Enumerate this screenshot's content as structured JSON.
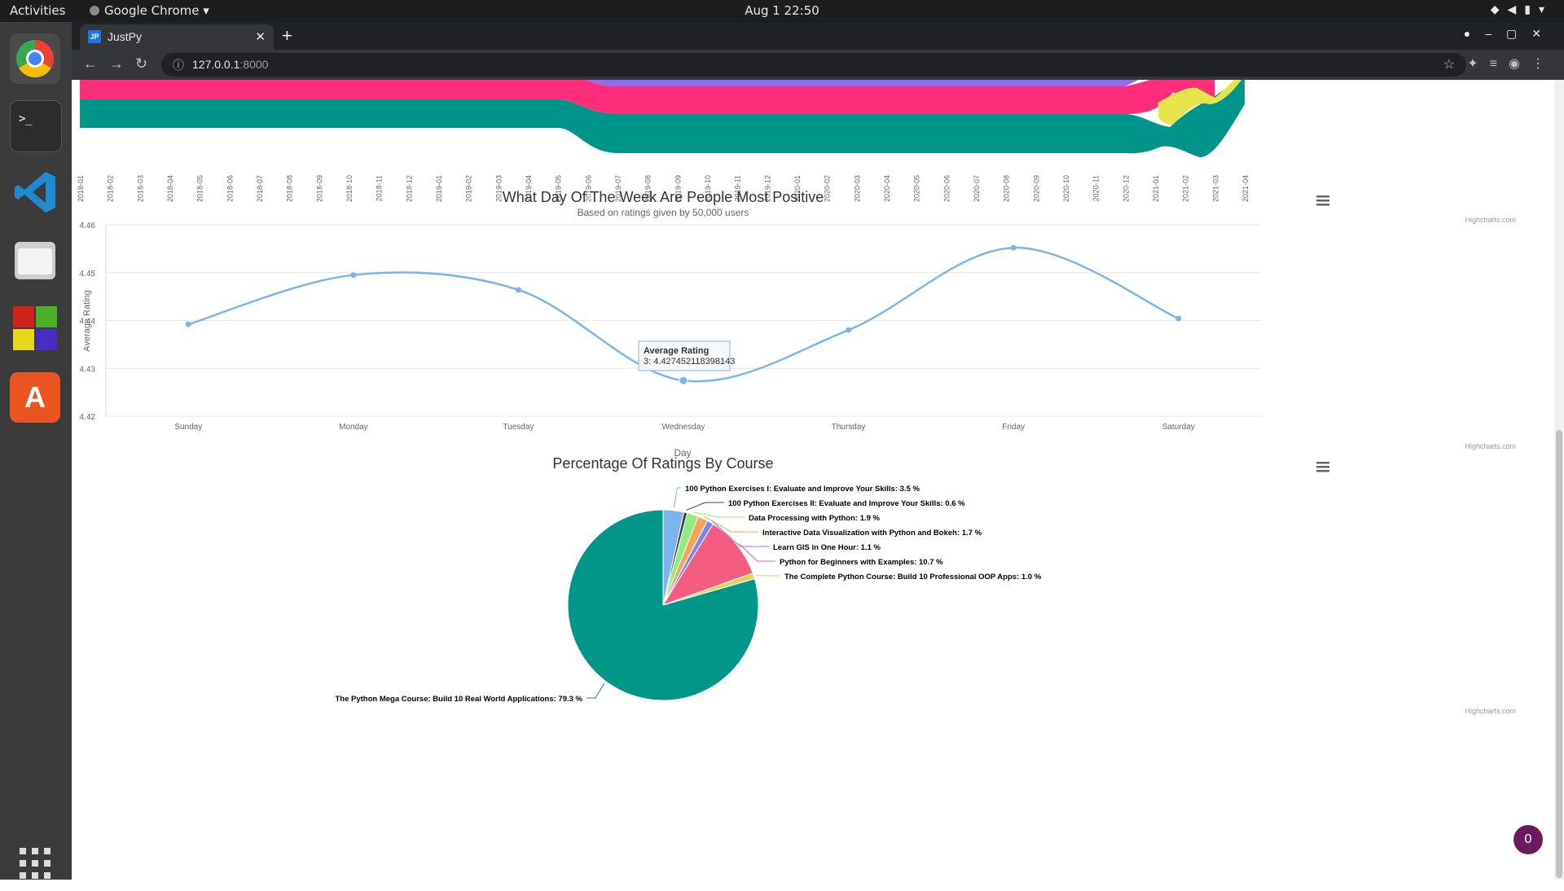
{
  "system_bar": {
    "activities": "Activities",
    "app_name": "Google Chrome",
    "clock": "Aug 1  22:50"
  },
  "browser": {
    "tab_title": "JustPy",
    "tab_favicon": "JP",
    "url_host": "127.0.0.1",
    "url_port": ":8000"
  },
  "top_chart": {
    "x_labels": [
      "2018-01",
      "2018-02",
      "2018-03",
      "2018-04",
      "2018-05",
      "2018-06",
      "2018-07",
      "2018-08",
      "2018-09",
      "2018-10",
      "2018-11",
      "2018-12",
      "2019-01",
      "2019-02",
      "2019-03",
      "2019-04",
      "2019-05",
      "2019-06",
      "2019-07",
      "2019-08",
      "2019-09",
      "2019-10",
      "2019-11",
      "2019-12",
      "2020-01",
      "2020-02",
      "2020-03",
      "2020-04",
      "2020-05",
      "2020-06",
      "2020-07",
      "2020-08",
      "2020-09",
      "2020-10",
      "2020-11",
      "2020-12",
      "2021-01",
      "2021-02",
      "2021-03",
      "2021-04"
    ],
    "credit": "Highcharts.com",
    "colors": {
      "purple": "#8c6cf0",
      "pink": "#ff2d7a",
      "teal": "#00958a",
      "yellow": "#e4e64a"
    }
  },
  "chart_data": [
    {
      "type": "line",
      "title": "What Day Of The Week Are People Most Positive",
      "subtitle": "Based on ratings given by 50,000 users",
      "xlabel": "Day",
      "ylabel": "Average Rating",
      "categories": [
        "Sunday",
        "Monday",
        "Tuesday",
        "Wednesday",
        "Thursday",
        "Friday",
        "Saturday"
      ],
      "series": [
        {
          "name": "Average Rating",
          "values": [
            4.4392,
            4.4495,
            4.4464,
            4.427452118398143,
            4.438,
            4.4552,
            4.4404
          ],
          "color": "#7cb5ec"
        }
      ],
      "ylim": [
        4.42,
        4.46
      ],
      "yticks": [
        "4.46",
        "4.45",
        "4.44",
        "4.43",
        "4.42"
      ],
      "grid": true,
      "tooltip": {
        "title": "Average Rating",
        "text": "3: 4.427452118398143"
      },
      "credit": "Highcharts.com"
    },
    {
      "type": "pie",
      "title": "Percentage Of Ratings By Course",
      "slices": [
        {
          "label": "100 Python Exercises I: Evaluate and Improve Your Skills: 3.5 %",
          "value": 3.5,
          "color": "#7cb5ec"
        },
        {
          "label": "100 Python Exercises II: Evaluate and Improve Your Skills: 0.6 %",
          "value": 0.6,
          "color": "#434348"
        },
        {
          "label": "Data Processing with Python: 1.9 %",
          "value": 1.9,
          "color": "#90ed7d"
        },
        {
          "label": "Interactive Data Visualization with Python and Bokeh: 1.7 %",
          "value": 1.7,
          "color": "#f7a35c"
        },
        {
          "label": "Learn GIS in One Hour: 1.1 %",
          "value": 1.1,
          "color": "#8085e9"
        },
        {
          "label": "Python for Beginners with Examples: 10.7 %",
          "value": 10.7,
          "color": "#f15c80"
        },
        {
          "label": "The Complete Python Course: Build 10 Professional OOP Apps: 1.0 %",
          "value": 1.0,
          "color": "#e4d354"
        },
        {
          "label": "The Python Mega Course: Build 10 Real World Applications: 79.3 %",
          "value": 79.3,
          "color": "#009688"
        }
      ],
      "credit": "Highcharts.com"
    }
  ],
  "badge": {
    "count": "0"
  }
}
